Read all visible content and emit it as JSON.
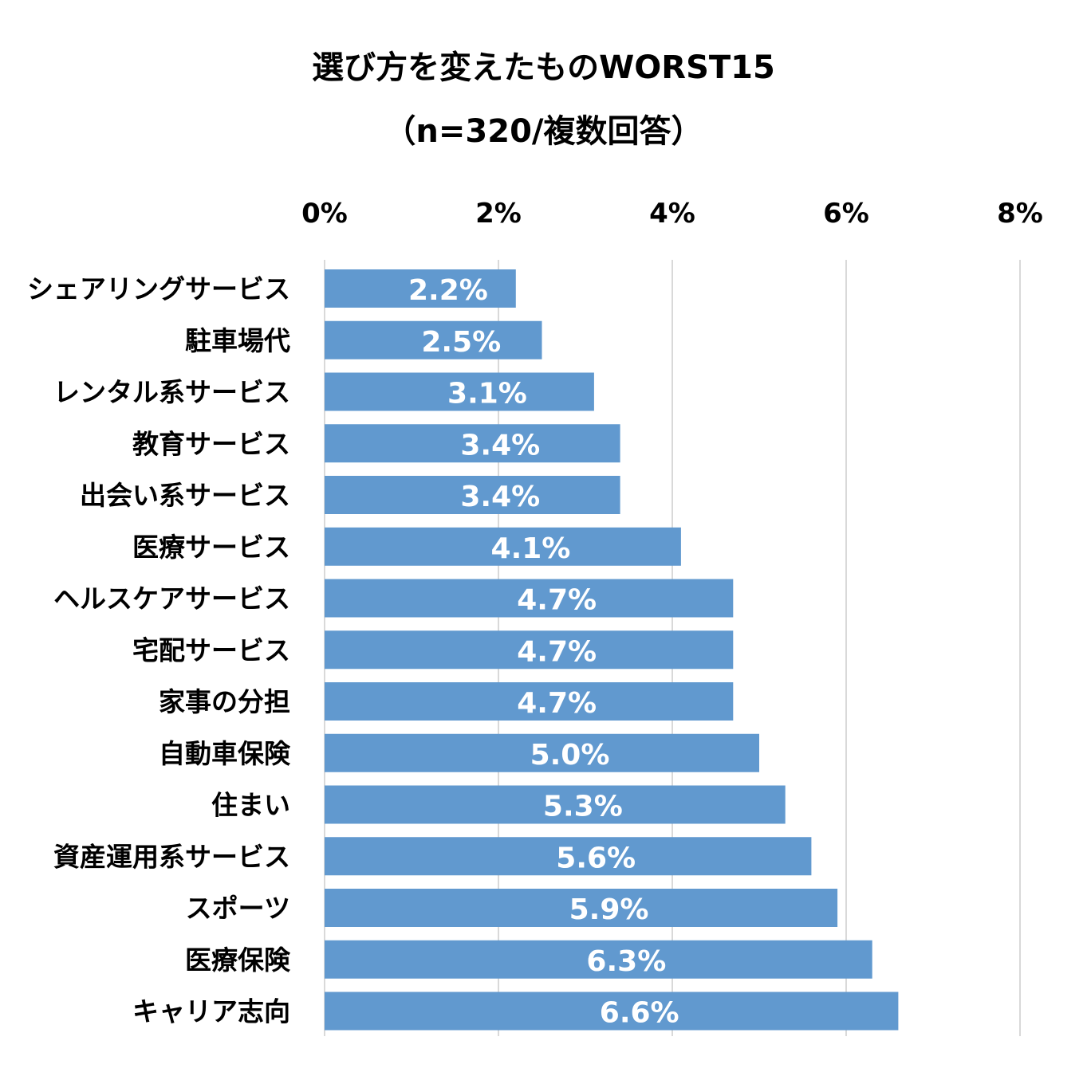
{
  "chart_data": {
    "type": "bar",
    "orientation": "horizontal",
    "title": "選び方を変えたものWORST15",
    "subtitle": "（n=320/複数回答）",
    "categories": [
      "シェアリングサービス",
      "駐車場代",
      "レンタル系サービス",
      "教育サービス",
      "出会い系サービス",
      "医療サービス",
      "ヘルスケアサービス",
      "宅配サービス",
      "家事の分担",
      "自動車保険",
      "住まい",
      "資産運用系サービス",
      "スポーツ",
      "医療保険",
      "キャリア志向"
    ],
    "values": [
      2.2,
      2.5,
      3.1,
      3.4,
      3.4,
      4.1,
      4.7,
      4.7,
      4.7,
      5.0,
      5.3,
      5.6,
      5.9,
      6.3,
      6.6
    ],
    "data_labels": [
      "2.2%",
      "2.5%",
      "3.1%",
      "3.4%",
      "3.4%",
      "4.1%",
      "4.7%",
      "4.7%",
      "4.7%",
      "5.0%",
      "5.3%",
      "5.6%",
      "5.9%",
      "6.3%",
      "6.6%"
    ],
    "x_ticks": [
      "0%",
      "2%",
      "4%",
      "6%",
      "8%"
    ],
    "xlim": [
      0,
      8
    ],
    "x_axis_position": "top",
    "grid": true,
    "legend": "none",
    "bar_color": "#6199cf",
    "grid_color": "#d9d9d9"
  }
}
